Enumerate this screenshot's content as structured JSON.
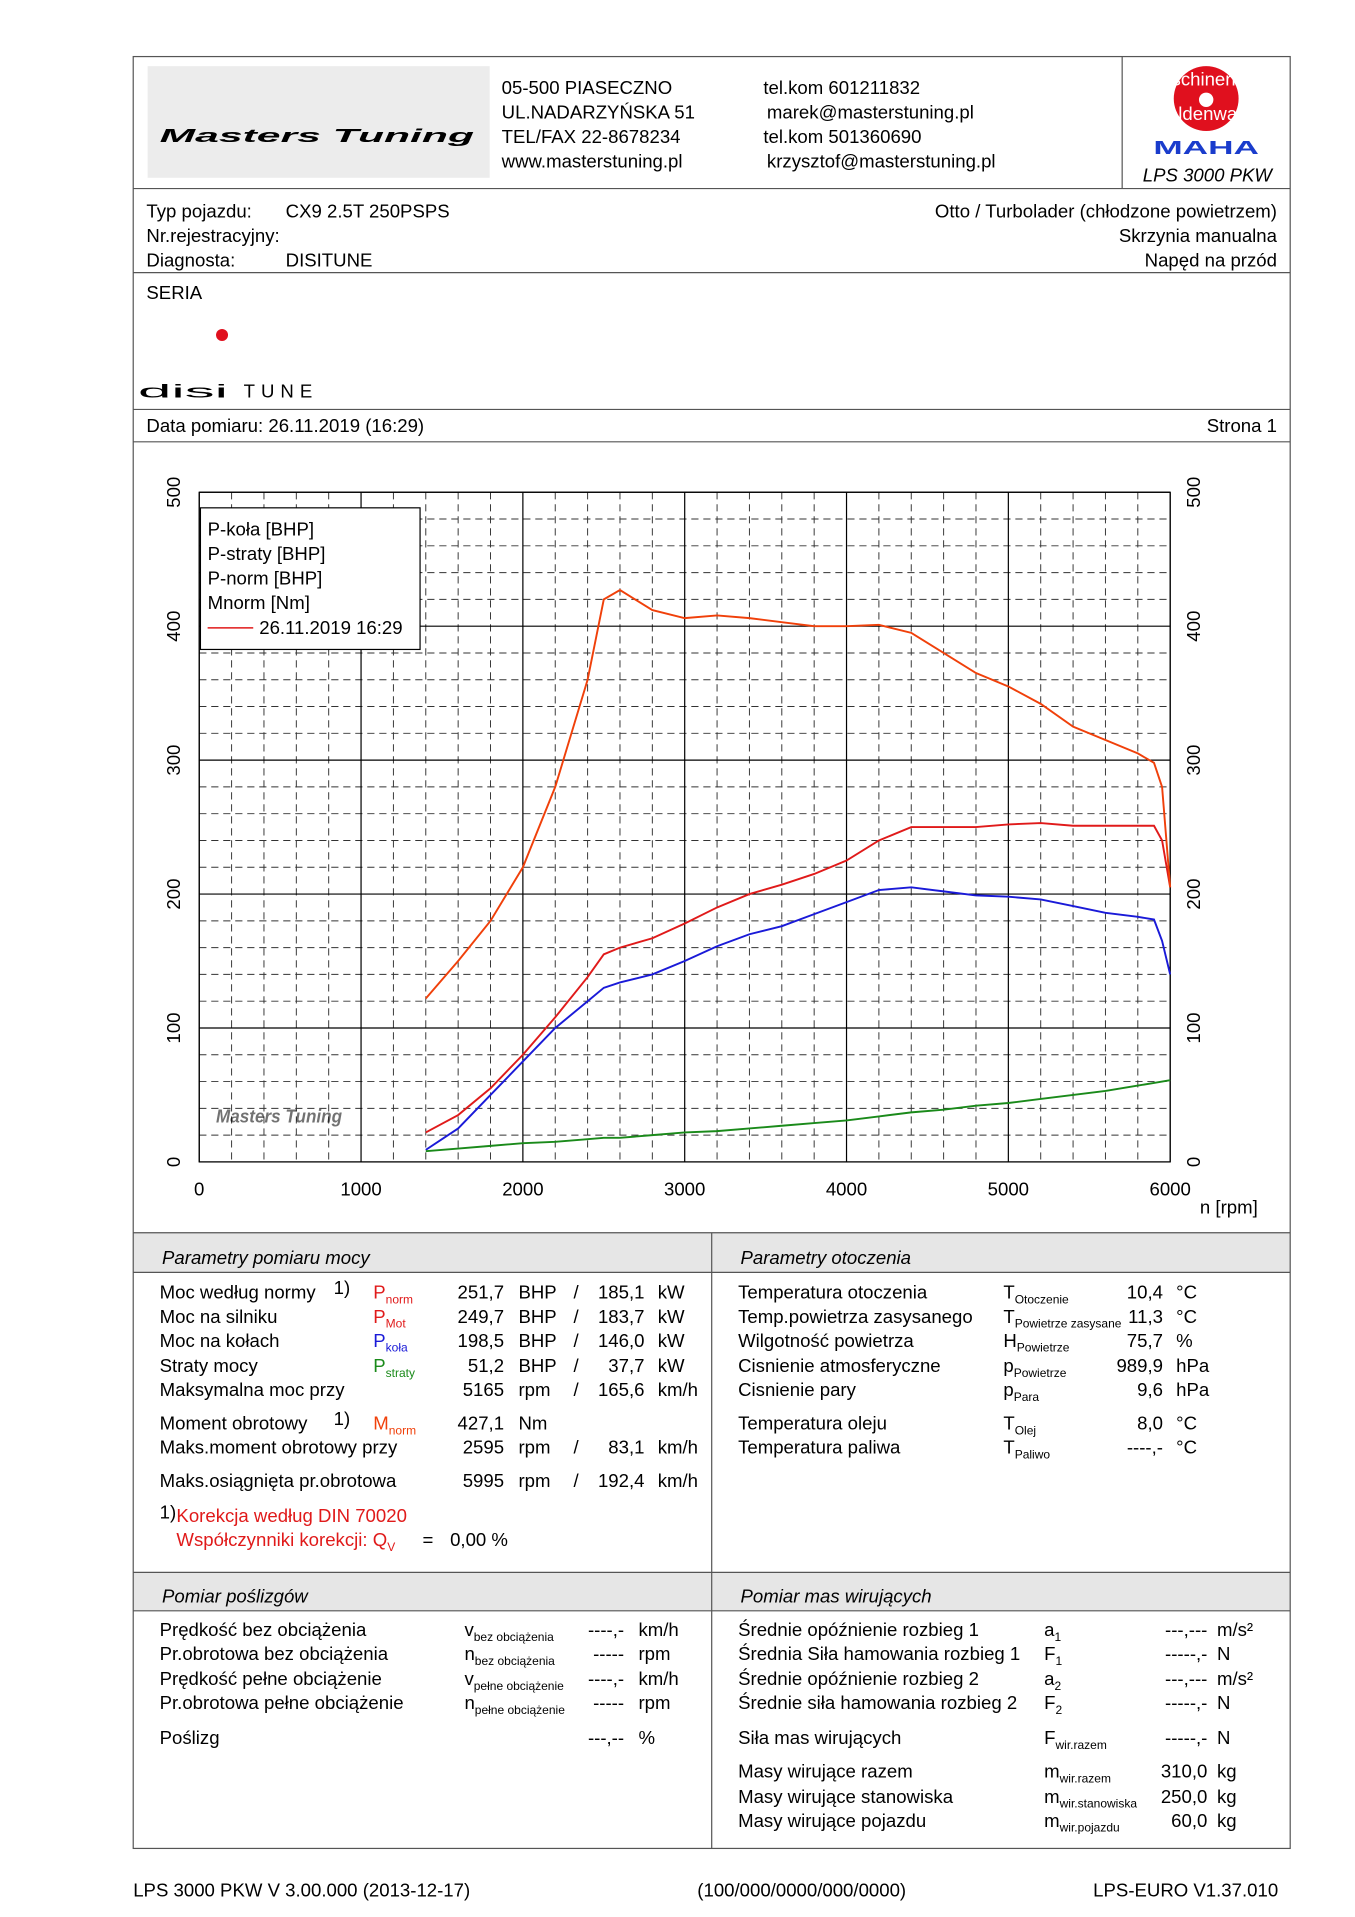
{
  "header": {
    "logo_text": "Masters Tuning",
    "address": [
      "05-500 PIASECZNO",
      "UL.NADARZYŃSKA 51",
      "TEL/FAX 22-8678234",
      "www.masterstuning.pl"
    ],
    "contacts": [
      "tel.kom 601211832",
      "marek@masterstuning.pl",
      "tel.kom 501360690",
      "krzysztof@masterstuning.pl"
    ],
    "maha": {
      "ring_top": "Maschinenbau",
      "ring_bottom": "Haldenwang",
      "brand": "MAHA",
      "model": "LPS 3000 PKW"
    }
  },
  "vehicle": {
    "left": [
      {
        "label": "Typ pojazdu:",
        "value": "CX9 2.5T 250PSPS"
      },
      {
        "label": "Nr.rejestracyjny:"
      },
      {
        "label": "Diagnosta:",
        "value": "DISITUNE"
      }
    ],
    "right": [
      "Otto / Turbolader (chłodzone powietrzem)",
      "Skrzynia manualna",
      "Napęd na przód"
    ]
  },
  "series_label": "SERIA",
  "brand": {
    "main": "disi",
    "sub": "TUNE"
  },
  "date_line": "Data pomiaru: 26.11.2019 (16:29)",
  "page_label": "Strona 1",
  "chart_data": {
    "type": "line",
    "x_label": "n [rpm]",
    "x": [
      1400,
      1600,
      1800,
      2000,
      2200,
      2400,
      2500,
      2600,
      2800,
      3000,
      3200,
      3400,
      3600,
      3800,
      4000,
      4200,
      4400,
      4600,
      4800,
      5000,
      5200,
      5400,
      5600,
      5800,
      5900,
      5950,
      6000
    ],
    "series": [
      {
        "name": "P-koła [BHP]",
        "color": "#1a1ad8",
        "values": [
          9,
          25,
          50,
          75,
          100,
          120,
          130,
          134,
          140,
          150,
          161,
          170,
          176,
          185,
          194,
          203,
          205,
          202,
          199,
          198,
          196,
          191,
          186,
          183,
          181,
          165,
          140
        ]
      },
      {
        "name": "P-straty [BHP]",
        "color": "#1a8a1a",
        "values": [
          8,
          10,
          12,
          14,
          15,
          17,
          18,
          18,
          20,
          22,
          23,
          25,
          27,
          29,
          31,
          34,
          37,
          39,
          42,
          44,
          47,
          50,
          53,
          57,
          59,
          60,
          61
        ]
      },
      {
        "name": "P-norm [BHP]",
        "color": "#e01a1a",
        "values": [
          22,
          35,
          55,
          80,
          108,
          138,
          155,
          160,
          167,
          178,
          190,
          200,
          207,
          215,
          225,
          240,
          250,
          250,
          250,
          252,
          253,
          251,
          251,
          251,
          251,
          240,
          205
        ]
      },
      {
        "name": "Mnorm [Nm]",
        "color": "#f0400a",
        "axis": "y2",
        "values": [
          122,
          150,
          180,
          220,
          280,
          360,
          420,
          427,
          412,
          406,
          408,
          406,
          403,
          400,
          400,
          401,
          395,
          380,
          365,
          355,
          342,
          325,
          315,
          305,
          298,
          280,
          205
        ]
      }
    ],
    "legend_entry": {
      "label": "26.11.2019 16:29",
      "color": "#e01a1a"
    },
    "xlim": [
      0,
      6000
    ],
    "xticks": [
      0,
      1000,
      2000,
      3000,
      4000,
      5000,
      6000
    ],
    "ylim": [
      0,
      500
    ],
    "yticks": [
      0,
      100,
      200,
      300,
      400,
      500
    ],
    "y2lim": [
      0,
      500
    ],
    "y2ticks": [
      0,
      100,
      200,
      300,
      400,
      500
    ],
    "y2color": "#f0400a",
    "grid": true,
    "minor_grid": true,
    "legend": "upper left"
  },
  "power": {
    "title": "Parametry pomiaru mocy",
    "rows": [
      {
        "label": "Moc według normy",
        "note": "1)",
        "sym": "P",
        "sub": "norm",
        "v1": "251,7",
        "u1": "BHP",
        "sep": "/",
        "v2": "185,1",
        "u2": "kW",
        "color": "#e01a1a"
      },
      {
        "label": "Moc na silniku",
        "sym": "P",
        "sub": "Mot",
        "v1": "249,7",
        "u1": "BHP",
        "sep": "/",
        "v2": "183,7",
        "u2": "kW",
        "color": "#e01a1a"
      },
      {
        "label": "Moc na kołach",
        "sym": "P",
        "sub": "koła",
        "v1": "198,5",
        "u1": "BHP",
        "sep": "/",
        "v2": "146,0",
        "u2": "kW",
        "color": "#1a1ad8"
      },
      {
        "label": "Straty mocy",
        "sym": "P",
        "sub": "straty",
        "v1": "51,2",
        "u1": "BHP",
        "sep": "/",
        "v2": "37,7",
        "u2": "kW",
        "color": "#1a8a1a"
      },
      {
        "label": "Maksymalna moc przy",
        "v1": "5165",
        "u1": "rpm",
        "sep": "/",
        "v2": "165,6",
        "u2": "km/h",
        "muted": "#999999"
      },
      {
        "label": "Moment obrotowy",
        "note": "1)",
        "sym": "M",
        "sub": "norm",
        "v1": "427,1",
        "u1": "Nm",
        "color": "#f0400a"
      },
      {
        "label": "Maks.moment obrotowy przy",
        "v1": "2595",
        "u1": "rpm",
        "sep": "/",
        "v2": "83,1",
        "u2": "km/h",
        "muted": "#999999"
      },
      {
        "label": "Maks.osiągnięta pr.obrotowa",
        "v1": "5995",
        "u1": "rpm",
        "sep": "/",
        "v2": "192,4",
        "u2": "km/h",
        "muted": "#999999"
      }
    ],
    "notes": [
      {
        "mark": "1)",
        "text": "Korekcja według DIN 70020"
      },
      {
        "text": "Współczynniki korekcji: Q",
        "sub": "V",
        "eq": "=",
        "value": "0,00 %"
      }
    ],
    "notes_color": "#e01a1a"
  },
  "environment": {
    "title": "Parametry otoczenia",
    "rows": [
      {
        "label": "Temperatura otoczenia",
        "sym": "T",
        "sub": "Otoczenie",
        "value": "10,4",
        "unit": "°C"
      },
      {
        "label": "Temp.powietrza zasysanego",
        "sym": "T",
        "sub": "Powietrze zasysane",
        "value": "11,3",
        "unit": "°C"
      },
      {
        "label": "Wilgotność powietrza",
        "sym": "H",
        "sub": "Powietrze",
        "value": "75,7",
        "unit": "%"
      },
      {
        "label": "Cisnienie atmosferyczne",
        "sym": "p",
        "sub": "Powietrze",
        "value": "989,9",
        "unit": "hPa"
      },
      {
        "label": "Cisnienie pary",
        "sym": "p",
        "sub": "Para",
        "value": "9,6",
        "unit": "hPa"
      },
      {
        "label": "Temperatura oleju",
        "sym": "T",
        "sub": "Olej",
        "value": "8,0",
        "unit": "°C"
      },
      {
        "label": "Temperatura paliwa",
        "sym": "T",
        "sub": "Paliwo",
        "value": "----,-",
        "unit": "°C"
      }
    ]
  },
  "slip": {
    "title": "Pomiar poślizgów",
    "rows": [
      {
        "label": "Prędkość bez obciążenia",
        "sym": "v",
        "sub": "bez obciążenia",
        "value": "----,-",
        "unit": "km/h"
      },
      {
        "label": "Pr.obrotowa bez obciążenia",
        "sym": "n",
        "sub": "bez obciążenia",
        "value": "-----",
        "unit": "rpm"
      },
      {
        "label": "Prędkość pełne obciążenie",
        "sym": "v",
        "sub": "pełne obciążenie",
        "value": "----,-",
        "unit": "km/h"
      },
      {
        "label": "Pr.obrotowa pełne obciążenie",
        "sym": "n",
        "sub": "pełne obciążenie",
        "value": "-----",
        "unit": "rpm"
      },
      {
        "label": "Poślizg",
        "value": "---,--",
        "unit": "%"
      }
    ]
  },
  "masses": {
    "title": "Pomiar mas wirujących",
    "rows": [
      {
        "label": "Średnie opóźnienie rozbieg 1",
        "sym": "a",
        "sub": "1",
        "value": "---,---",
        "unit": "m/s²"
      },
      {
        "label": "Średnia Siła hamowania rozbieg 1",
        "sym": "F",
        "sub": "1",
        "value": "-----,-",
        "unit": "N"
      },
      {
        "label": "Średnie opóźnienie rozbieg 2",
        "sym": "a",
        "sub": "2",
        "value": "---,---",
        "unit": "m/s²"
      },
      {
        "label": "Średnie siła hamowania rozbieg 2",
        "sym": "F",
        "sub": "2",
        "value": "-----,-",
        "unit": "N"
      },
      {
        "label": "Siła mas wirujących",
        "sym": "F",
        "sub": "wir.razem",
        "value": "-----,-",
        "unit": "N"
      },
      {
        "label": "Masy wirujące razem",
        "sym": "m",
        "sub": "wir.razem",
        "value": "310,0",
        "unit": "kg"
      },
      {
        "label": "Masy wirujące stanowiska",
        "sym": "m",
        "sub": "wir.stanowiska",
        "value": "250,0",
        "unit": "kg"
      },
      {
        "label": "Masy wirujące pojazdu",
        "sym": "m",
        "sub": "wir.pojazdu",
        "value": "60,0",
        "unit": "kg"
      }
    ]
  },
  "footer": {
    "left": "LPS 3000 PKW V 3.00.000 (2013-12-17)",
    "center": "(100/000/0000/000/0000)",
    "right": "LPS-EURO V1.37.010"
  }
}
